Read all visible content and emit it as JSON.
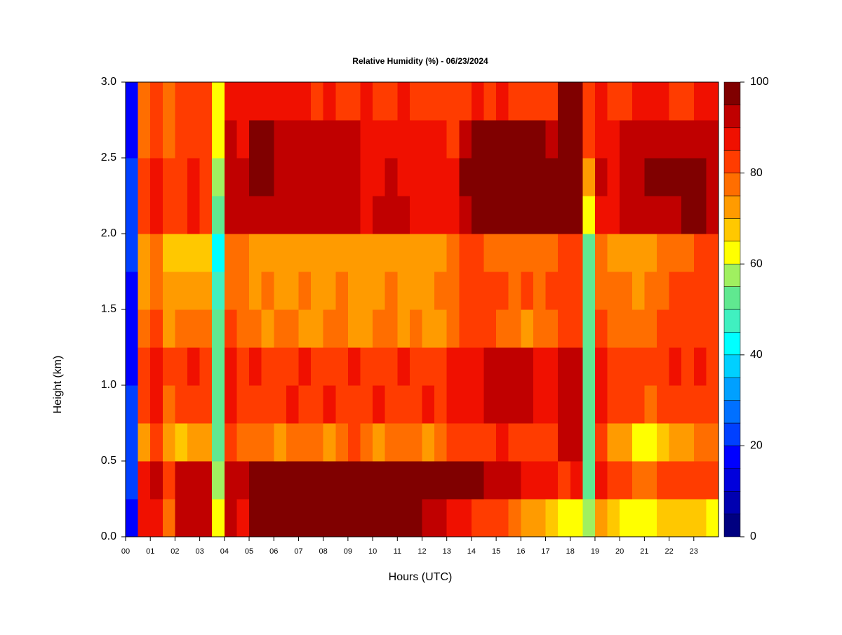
{
  "chart_data": {
    "type": "heatmap",
    "title": "Relative Humidity (%) - 06/23/2024",
    "xlabel": "Hours (UTC)",
    "ylabel": "Height (km)",
    "xlim": [
      0,
      24
    ],
    "ylim": [
      0,
      3
    ],
    "xticks": [
      {
        "value": 0,
        "label": "00"
      },
      {
        "value": 1,
        "label": "01"
      },
      {
        "value": 2,
        "label": "02"
      },
      {
        "value": 3,
        "label": "03"
      },
      {
        "value": 4,
        "label": "04"
      },
      {
        "value": 5,
        "label": "05"
      },
      {
        "value": 6,
        "label": "06"
      },
      {
        "value": 7,
        "label": "07"
      },
      {
        "value": 8,
        "label": "08"
      },
      {
        "value": 9,
        "label": "09"
      },
      10,
      11,
      12,
      13,
      14,
      15,
      16,
      17,
      18,
      19,
      20,
      21,
      22,
      23
    ],
    "yticks": [
      {
        "value": 0,
        "label": "0.0"
      },
      {
        "value": 0.5,
        "label": "0.5"
      },
      {
        "value": 1,
        "label": "1.0"
      },
      {
        "value": 1.5,
        "label": "1.5"
      },
      {
        "value": 2,
        "label": "2.0"
      },
      {
        "value": 2.5,
        "label": "2.5"
      },
      {
        "value": 3,
        "label": "3.0"
      }
    ],
    "x_edges": [
      0,
      0.5,
      1,
      1.5,
      2,
      2.5,
      3,
      3.5,
      4,
      4.5,
      5,
      5.5,
      6,
      6.5,
      7,
      7.5,
      8,
      8.5,
      9,
      9.5,
      10,
      10.5,
      11,
      11.5,
      12,
      12.5,
      13,
      13.5,
      14,
      14.5,
      15,
      15.5,
      16,
      16.5,
      17,
      17.5,
      18,
      18.5,
      19,
      19.5,
      20,
      20.5,
      21,
      21.5,
      22,
      22.5,
      23,
      23.5,
      24
    ],
    "y_edges": [
      0,
      0.25,
      0.5,
      0.75,
      1,
      1.25,
      1.5,
      1.75,
      2,
      2.25,
      2.5,
      2.75,
      3
    ],
    "z": [
      [
        18,
        85,
        88,
        78,
        90,
        92,
        90,
        60,
        90,
        88,
        96,
        96,
        96,
        96,
        96,
        96,
        96,
        96,
        96,
        96,
        96,
        96,
        96,
        96,
        92,
        90,
        88,
        86,
        84,
        82,
        80,
        78,
        74,
        70,
        66,
        64,
        64,
        55,
        70,
        65,
        64,
        60,
        62,
        66,
        68,
        68,
        66,
        64
      ],
      [
        20,
        88,
        90,
        80,
        92,
        94,
        92,
        55,
        94,
        92,
        96,
        96,
        96,
        96,
        96,
        96,
        96,
        96,
        96,
        96,
        96,
        96,
        96,
        96,
        96,
        96,
        96,
        96,
        95,
        94,
        93,
        92,
        88,
        86,
        85,
        84,
        88,
        50,
        86,
        82,
        80,
        76,
        78,
        80,
        80,
        82,
        80,
        80
      ],
      [
        22,
        72,
        82,
        70,
        68,
        72,
        70,
        50,
        80,
        78,
        76,
        78,
        74,
        76,
        78,
        76,
        74,
        78,
        80,
        76,
        74,
        76,
        78,
        76,
        74,
        78,
        80,
        82,
        84,
        84,
        86,
        84,
        82,
        80,
        82,
        90,
        90,
        50,
        84,
        74,
        72,
        62,
        60,
        68,
        72,
        74,
        76,
        78
      ],
      [
        20,
        80,
        86,
        78,
        82,
        84,
        80,
        52,
        86,
        84,
        84,
        82,
        84,
        86,
        82,
        84,
        86,
        84,
        82,
        84,
        86,
        84,
        82,
        84,
        86,
        84,
        86,
        86,
        88,
        90,
        92,
        92,
        90,
        88,
        88,
        94,
        94,
        50,
        88,
        84,
        82,
        80,
        78,
        80,
        82,
        84,
        82,
        84
      ],
      [
        18,
        82,
        86,
        80,
        84,
        86,
        82,
        52,
        88,
        84,
        86,
        84,
        82,
        84,
        86,
        84,
        82,
        84,
        86,
        84,
        82,
        84,
        86,
        84,
        82,
        84,
        86,
        88,
        88,
        90,
        90,
        92,
        90,
        86,
        86,
        92,
        90,
        50,
        86,
        84,
        82,
        84,
        82,
        84,
        86,
        84,
        86,
        84
      ],
      [
        18,
        76,
        80,
        74,
        76,
        78,
        76,
        50,
        80,
        78,
        76,
        74,
        78,
        76,
        72,
        74,
        76,
        78,
        74,
        72,
        76,
        78,
        74,
        76,
        72,
        74,
        78,
        80,
        82,
        80,
        78,
        76,
        74,
        76,
        78,
        84,
        84,
        52,
        80,
        78,
        78,
        76,
        78,
        80,
        80,
        82,
        80,
        82
      ],
      [
        18,
        74,
        78,
        70,
        70,
        72,
        70,
        45,
        78,
        76,
        74,
        76,
        72,
        74,
        76,
        74,
        72,
        76,
        74,
        72,
        74,
        76,
        74,
        72,
        74,
        76,
        78,
        80,
        82,
        80,
        80,
        78,
        80,
        78,
        80,
        82,
        82,
        50,
        78,
        76,
        76,
        74,
        76,
        78,
        80,
        82,
        82,
        84
      ],
      [
        20,
        72,
        76,
        66,
        68,
        66,
        68,
        42,
        78,
        76,
        74,
        72,
        70,
        72,
        74,
        72,
        70,
        72,
        74,
        72,
        70,
        72,
        74,
        72,
        74,
        72,
        76,
        80,
        80,
        78,
        78,
        76,
        78,
        76,
        78,
        84,
        84,
        50,
        76,
        74,
        72,
        72,
        74,
        76,
        76,
        78,
        80,
        82
      ],
      [
        20,
        80,
        86,
        80,
        84,
        86,
        84,
        50,
        92,
        90,
        92,
        94,
        94,
        92,
        90,
        92,
        94,
        92,
        90,
        88,
        90,
        92,
        90,
        88,
        88,
        86,
        86,
        94,
        96,
        96,
        96,
        96,
        96,
        96,
        96,
        98,
        96,
        60,
        88,
        88,
        90,
        92,
        94,
        94,
        94,
        96,
        96,
        94
      ],
      [
        20,
        80,
        86,
        80,
        84,
        86,
        84,
        56,
        92,
        90,
        96,
        96,
        94,
        94,
        92,
        94,
        92,
        90,
        90,
        88,
        88,
        90,
        88,
        88,
        86,
        86,
        86,
        96,
        98,
        98,
        98,
        98,
        98,
        98,
        98,
        98,
        96,
        70,
        90,
        88,
        92,
        94,
        96,
        96,
        96,
        96,
        96,
        94
      ],
      [
        18,
        78,
        84,
        78,
        82,
        84,
        82,
        60,
        90,
        88,
        96,
        96,
        94,
        94,
        94,
        92,
        92,
        90,
        90,
        88,
        88,
        88,
        88,
        86,
        86,
        86,
        84,
        92,
        96,
        96,
        96,
        96,
        96,
        96,
        90,
        98,
        96,
        82,
        88,
        86,
        90,
        92,
        94,
        94,
        94,
        94,
        92,
        90
      ],
      [
        18,
        76,
        82,
        76,
        80,
        82,
        80,
        62,
        88,
        86,
        88,
        86,
        86,
        88,
        86,
        84,
        86,
        84,
        84,
        86,
        84,
        84,
        86,
        84,
        84,
        84,
        84,
        84,
        86,
        84,
        86,
        84,
        84,
        82,
        84,
        96,
        96,
        84,
        86,
        84,
        84,
        86,
        86,
        86,
        84,
        84,
        86,
        86
      ]
    ],
    "colorbar": {
      "levels": [
        0,
        5,
        10,
        15,
        20,
        25,
        30,
        35,
        40,
        45,
        50,
        55,
        60,
        65,
        70,
        75,
        80,
        85,
        90,
        95,
        100
      ],
      "colors": [
        "#000080",
        "#0000b0",
        "#0000dc",
        "#0000ff",
        "#0040ff",
        "#0070ff",
        "#00a0ff",
        "#00d0ff",
        "#00ffff",
        "#40f0c0",
        "#60e890",
        "#a0f060",
        "#ffff00",
        "#ffc800",
        "#ff9b00",
        "#ff6e00",
        "#ff3c00",
        "#f01000",
        "#c00000",
        "#800000"
      ],
      "ticks": [
        0,
        20,
        40,
        60,
        80,
        100
      ]
    }
  }
}
